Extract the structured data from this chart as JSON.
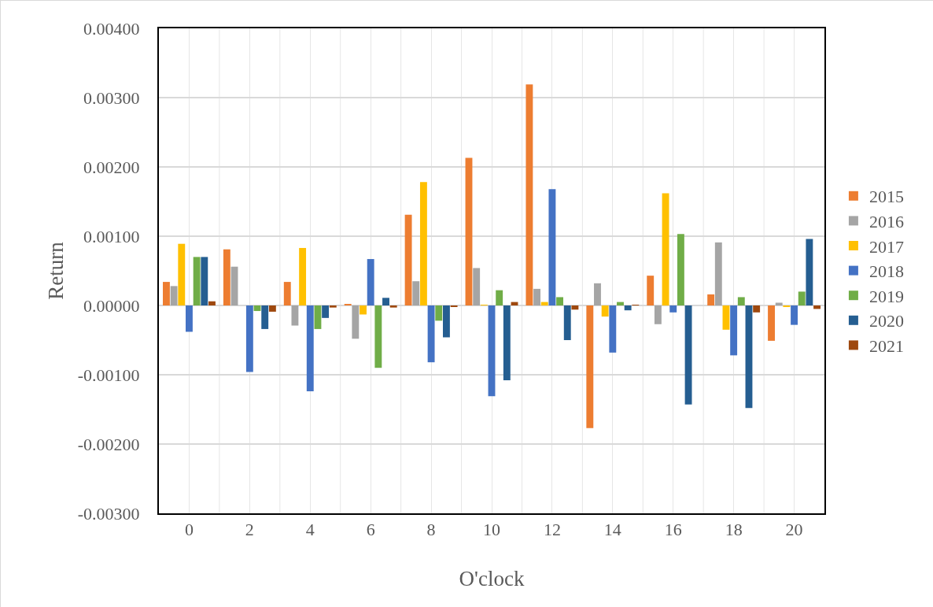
{
  "chart_data": {
    "type": "bar",
    "xlabel": "O'clock",
    "ylabel": "Return",
    "categories": [
      "0",
      "2",
      "4",
      "6",
      "8",
      "10",
      "12",
      "14",
      "16",
      "18",
      "20"
    ],
    "series": [
      {
        "name": "2015",
        "color": "#ed7d31",
        "values": [
          0.00034,
          0.00081,
          0.00034,
          2e-05,
          0.00131,
          0.00213,
          0.00319,
          -0.00177,
          0.00043,
          0.00016,
          -0.00051
        ]
      },
      {
        "name": "2016",
        "color": "#a5a5a5",
        "values": [
          0.00028,
          0.00056,
          -0.00029,
          -0.00048,
          0.00035,
          0.00054,
          0.00024,
          0.00032,
          -0.00027,
          0.00091,
          4e-05
        ]
      },
      {
        "name": "2017",
        "color": "#ffc000",
        "values": [
          0.00089,
          0,
          0.00083,
          -0.00013,
          0.00178,
          1e-05,
          5e-05,
          -0.00016,
          0.00162,
          -0.00035,
          -2e-05
        ]
      },
      {
        "name": "2018",
        "color": "#4472c4",
        "values": [
          -0.00038,
          -0.00096,
          -0.00124,
          0.00067,
          -0.00082,
          -0.00131,
          0.00168,
          -0.00068,
          -0.0001,
          -0.00072,
          -0.00028
        ]
      },
      {
        "name": "2019",
        "color": "#70ad47",
        "values": [
          0.0007,
          -8e-05,
          -0.00034,
          -0.0009,
          -0.00022,
          0.00022,
          0.00012,
          5e-05,
          0.00103,
          0.00012,
          0.0002
        ]
      },
      {
        "name": "2020",
        "color": "#255e91",
        "values": [
          0.0007,
          -0.00034,
          -0.00018,
          0.00011,
          -0.00046,
          -0.00108,
          -0.0005,
          -7e-05,
          -0.00143,
          -0.00148,
          0.00096
        ]
      },
      {
        "name": "2021",
        "color": "#9e480e",
        "values": [
          6e-05,
          -9e-05,
          -3e-05,
          -3e-05,
          -2e-05,
          5e-05,
          -6e-05,
          1e-05,
          0,
          -0.0001,
          -5e-05
        ]
      }
    ],
    "ylim": [
      -0.003,
      0.004
    ],
    "yticks": [
      {
        "value": -0.003,
        "label": "-0.00300"
      },
      {
        "value": -0.002,
        "label": "-0.00200"
      },
      {
        "value": -0.001,
        "label": "-0.00100"
      },
      {
        "value": 0,
        "label": "0.00000"
      },
      {
        "value": 0.001,
        "label": "0.00100"
      },
      {
        "value": 0.002,
        "label": "0.00200"
      },
      {
        "value": 0.003,
        "label": "0.00300"
      },
      {
        "value": 0.004,
        "label": "0.00400"
      }
    ],
    "grid": true,
    "legend": "right"
  }
}
